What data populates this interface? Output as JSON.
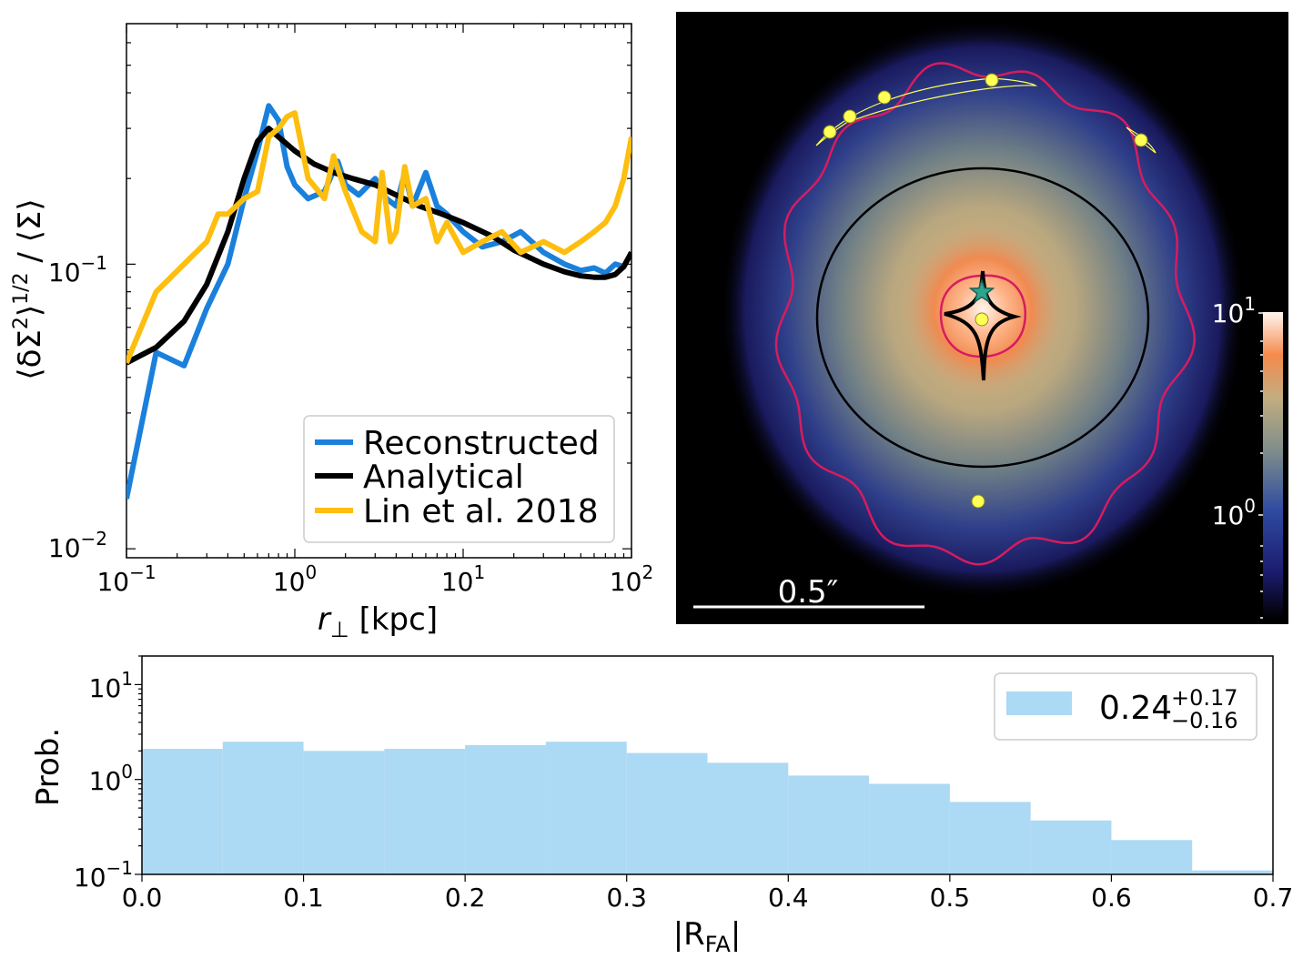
{
  "chart_data": [
    {
      "type": "line",
      "panel": "top-left",
      "xlabel": "r_⊥ [kpc]",
      "xlabel_parts": {
        "sym": "r",
        "sub": "⊥",
        "unit": " [kpc]"
      },
      "ylabel": "⟨δΣ²⟩^1/2 / ⟨Σ⟩",
      "ylabel_parts": {
        "pre": "⟨δΣ",
        "sup1": "2",
        "mid": "⟩",
        "sup2": "1/2",
        "post": " / ⟨Σ⟩"
      },
      "xscale": "log",
      "yscale": "log",
      "xlim": [
        0.1,
        100
      ],
      "ylim": [
        0.0093,
        0.7
      ],
      "xticks": [
        {
          "v": 0.1,
          "base": "10",
          "exp": "−1"
        },
        {
          "v": 1,
          "base": "10",
          "exp": "0"
        },
        {
          "v": 10,
          "base": "10",
          "exp": "1"
        },
        {
          "v": 100,
          "base": "10",
          "exp": "2"
        }
      ],
      "yticks": [
        {
          "v": 0.01,
          "base": "10",
          "exp": "−2"
        },
        {
          "v": 0.1,
          "base": "10",
          "exp": "−1"
        }
      ],
      "legend_position": "lower-right",
      "series": [
        {
          "name": "Reconstructed",
          "color": "#1a80dc",
          "x": [
            0.1,
            0.15,
            0.22,
            0.3,
            0.4,
            0.5,
            0.6,
            0.7,
            0.8,
            0.9,
            1.0,
            1.2,
            1.5,
            1.8,
            2.0,
            2.4,
            3.0,
            3.5,
            4.0,
            4.5,
            5.0,
            6.0,
            7.0,
            8.0,
            10,
            13,
            17,
            22,
            30,
            40,
            50,
            60,
            70,
            80,
            90,
            100
          ],
          "y": [
            0.015,
            0.049,
            0.044,
            0.07,
            0.1,
            0.17,
            0.25,
            0.36,
            0.32,
            0.22,
            0.19,
            0.17,
            0.18,
            0.23,
            0.19,
            0.175,
            0.2,
            0.17,
            0.16,
            0.21,
            0.16,
            0.21,
            0.16,
            0.15,
            0.13,
            0.115,
            0.12,
            0.13,
            0.11,
            0.1,
            0.095,
            0.097,
            0.093,
            0.1,
            0.098,
            0.11
          ]
        },
        {
          "name": "Analytical",
          "color": "#000000",
          "x": [
            0.1,
            0.15,
            0.22,
            0.3,
            0.4,
            0.5,
            0.6,
            0.7,
            0.8,
            1.0,
            1.3,
            1.7,
            2.2,
            3.0,
            4.0,
            5.5,
            7.5,
            10,
            15,
            20,
            30,
            40,
            50,
            60,
            70,
            80,
            90,
            100
          ],
          "y": [
            0.045,
            0.051,
            0.063,
            0.085,
            0.13,
            0.2,
            0.27,
            0.3,
            0.28,
            0.25,
            0.225,
            0.21,
            0.2,
            0.19,
            0.175,
            0.16,
            0.15,
            0.14,
            0.125,
            0.112,
            0.1,
            0.094,
            0.091,
            0.09,
            0.09,
            0.092,
            0.098,
            0.11
          ]
        },
        {
          "name": "Lin et al. 2018",
          "color": "#fdbe0f",
          "x": [
            0.1,
            0.15,
            0.22,
            0.3,
            0.35,
            0.4,
            0.5,
            0.6,
            0.7,
            0.8,
            0.9,
            1.0,
            1.2,
            1.5,
            1.7,
            2.0,
            2.5,
            3.0,
            3.3,
            3.7,
            4.0,
            4.5,
            5.0,
            6.0,
            7.0,
            8.0,
            10,
            13,
            17,
            22,
            30,
            40,
            50,
            60,
            70,
            80,
            90,
            100
          ],
          "y": [
            0.045,
            0.08,
            0.1,
            0.12,
            0.15,
            0.15,
            0.17,
            0.18,
            0.28,
            0.3,
            0.33,
            0.34,
            0.2,
            0.17,
            0.24,
            0.18,
            0.13,
            0.12,
            0.21,
            0.12,
            0.13,
            0.22,
            0.16,
            0.17,
            0.12,
            0.14,
            0.11,
            0.12,
            0.13,
            0.11,
            0.12,
            0.11,
            0.12,
            0.13,
            0.14,
            0.16,
            0.2,
            0.28
          ]
        }
      ]
    },
    {
      "type": "heatmap",
      "panel": "top-right",
      "scalebar_label": "0.5″",
      "colorbar": {
        "scale": "log",
        "ticks": [
          {
            "base": "10",
            "exp": "1"
          },
          {
            "base": "10",
            "exp": "0"
          }
        ]
      },
      "colors": {
        "critical_curve": "#d81b60",
        "ellipse": "#000000",
        "caustic": "#000000",
        "images": "#ffff55",
        "source": "#2ca58d"
      }
    },
    {
      "type": "bar",
      "panel": "bottom",
      "xlabel": "|R_FA|",
      "xlabel_parts": {
        "pre": "|R",
        "sub": "FA",
        "post": "|"
      },
      "ylabel": "Prob.",
      "yscale": "log",
      "xlim": [
        0.0,
        0.7
      ],
      "ylim": [
        0.1,
        20
      ],
      "xticks": [
        "0.0",
        "0.1",
        "0.2",
        "0.3",
        "0.4",
        "0.5",
        "0.6",
        "0.7"
      ],
      "yticks": [
        {
          "v": 0.1,
          "base": "10",
          "exp": "−1"
        },
        {
          "v": 1,
          "base": "10",
          "exp": "0"
        },
        {
          "v": 10,
          "base": "10",
          "exp": "1"
        }
      ],
      "bin_width": 0.05,
      "bin_starts": [
        0.0,
        0.05,
        0.1,
        0.15,
        0.2,
        0.25,
        0.3,
        0.35,
        0.4,
        0.45,
        0.5,
        0.55,
        0.6,
        0.65
      ],
      "values": [
        2.1,
        2.5,
        2.0,
        2.1,
        2.3,
        2.5,
        1.9,
        1.5,
        1.1,
        0.9,
        0.58,
        0.37,
        0.23,
        0.11
      ],
      "color": "#acd9f3",
      "legend_position": "upper-right",
      "legend": {
        "value": "0.24",
        "plus": "+0.17",
        "minus": "−0.16"
      }
    }
  ]
}
